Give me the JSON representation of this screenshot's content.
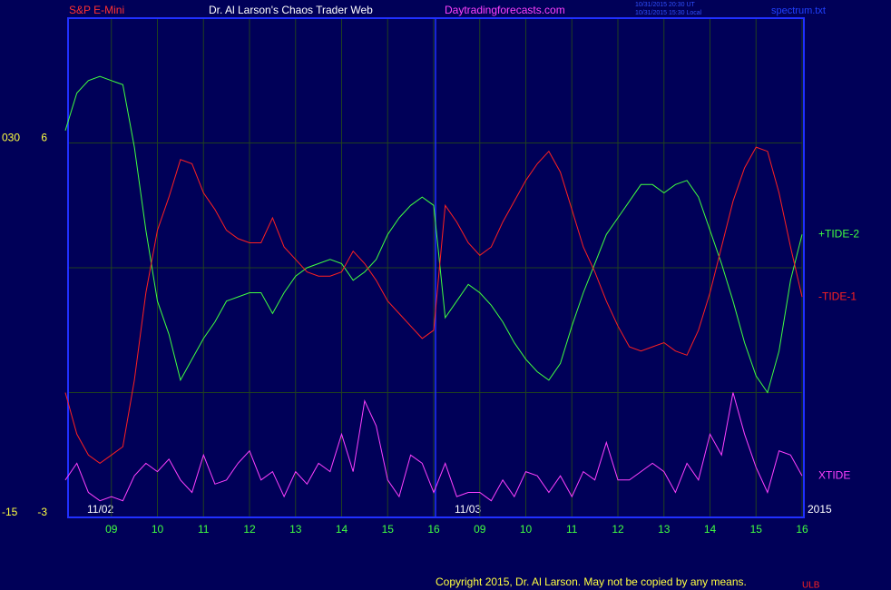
{
  "chart_data": {
    "type": "line",
    "header": {
      "symbol": "S&P E-Mini",
      "title": "Dr. Al Larson's Chaos Trader Web",
      "site": "Daytradingforecasts.com",
      "stamp_ut": "10/31/2015 20:30 UT",
      "stamp_local": "10/31/2015 15:30 Local",
      "file": "spectrum.txt"
    },
    "annotations": {
      "date1": "11/02",
      "date2": "11/03",
      "year": "2015",
      "copyright": "Copyright 2015, Dr. Al Larson. May not be copied by any means.",
      "mark": "ULB"
    },
    "categories": [
      null,
      null,
      null,
      null,
      "09",
      null,
      null,
      null,
      "10",
      null,
      null,
      null,
      "11",
      null,
      null,
      null,
      "12",
      null,
      null,
      null,
      "13",
      null,
      null,
      null,
      "14",
      null,
      null,
      null,
      "15",
      null,
      null,
      null,
      "16",
      null,
      null,
      null,
      "09",
      null,
      null,
      null,
      "10",
      null,
      null,
      null,
      "11",
      null,
      null,
      null,
      "12",
      null,
      null,
      null,
      "13",
      null,
      null,
      null,
      "14",
      null,
      null,
      null,
      "15",
      null,
      null,
      null,
      "16"
    ],
    "ylim": [
      -3,
      9
    ],
    "yticks": [
      -3,
      6
    ],
    "ygrid": [
      0,
      3,
      6
    ],
    "y2lim": [
      -15,
      45
    ],
    "y2ticks": [
      -15,
      {
        "value": 30,
        "label": "030"
      }
    ],
    "day_break": 32,
    "series": [
      {
        "name": "+TIDE-2",
        "color": "#40ff40",
        "values": [
          6.3,
          7.2,
          7.5,
          7.6,
          7.5,
          7.4,
          5.9,
          3.9,
          2.2,
          1.4,
          0.3,
          0.8,
          1.3,
          1.7,
          2.2,
          2.3,
          2.4,
          2.4,
          1.9,
          2.4,
          2.8,
          3.0,
          3.1,
          3.2,
          3.1,
          2.7,
          2.9,
          3.2,
          3.8,
          4.2,
          4.5,
          4.7,
          4.5,
          1.8,
          2.2,
          2.6,
          2.4,
          2.1,
          1.7,
          1.2,
          0.8,
          0.5,
          0.3,
          0.7,
          1.6,
          2.4,
          3.1,
          3.8,
          4.2,
          4.6,
          5.0,
          5.0,
          4.8,
          5.0,
          5.1,
          4.7,
          3.9,
          3.1,
          2.2,
          1.2,
          0.4,
          0.0,
          1.0,
          2.7,
          3.8
        ]
      },
      {
        "name": "-TIDE-1",
        "color": "#ff2020",
        "values": [
          0.0,
          -1.0,
          -1.5,
          -1.7,
          -1.5,
          -1.3,
          0.3,
          2.4,
          3.9,
          4.7,
          5.6,
          5.5,
          4.8,
          4.4,
          3.9,
          3.7,
          3.6,
          3.6,
          4.2,
          3.5,
          3.2,
          2.9,
          2.8,
          2.8,
          2.9,
          3.4,
          3.1,
          2.7,
          2.2,
          1.9,
          1.6,
          1.3,
          1.5,
          4.5,
          4.1,
          3.6,
          3.3,
          3.5,
          4.1,
          4.6,
          5.1,
          5.5,
          5.8,
          5.3,
          4.4,
          3.5,
          2.9,
          2.2,
          1.6,
          1.1,
          1.0,
          1.1,
          1.2,
          1.0,
          0.9,
          1.5,
          2.4,
          3.5,
          4.6,
          5.4,
          5.9,
          5.8,
          4.8,
          3.5,
          2.3
        ]
      },
      {
        "name": "XTIDE",
        "color": "#ff40ff",
        "values": [
          -2.1,
          -1.7,
          -2.4,
          -2.6,
          -2.5,
          -2.6,
          -2.0,
          -1.7,
          -1.9,
          -1.6,
          -2.1,
          -2.4,
          -1.5,
          -2.2,
          -2.1,
          -1.7,
          -1.4,
          -2.1,
          -1.9,
          -2.5,
          -1.9,
          -2.2,
          -1.7,
          -1.9,
          -1.0,
          -1.9,
          -0.2,
          -0.8,
          -2.1,
          -2.5,
          -1.5,
          -1.7,
          -2.4,
          -1.7,
          -2.5,
          -2.4,
          -2.4,
          -2.6,
          -2.1,
          -2.5,
          -1.9,
          -2.0,
          -2.4,
          -2.0,
          -2.5,
          -1.9,
          -2.1,
          -1.2,
          -2.1,
          -2.1,
          -1.9,
          -1.7,
          -1.9,
          -2.4,
          -1.7,
          -2.1,
          -1.0,
          -1.5,
          0.0,
          -1.0,
          -1.8,
          -2.4,
          -1.4,
          -1.5,
          -2.0
        ]
      }
    ]
  }
}
